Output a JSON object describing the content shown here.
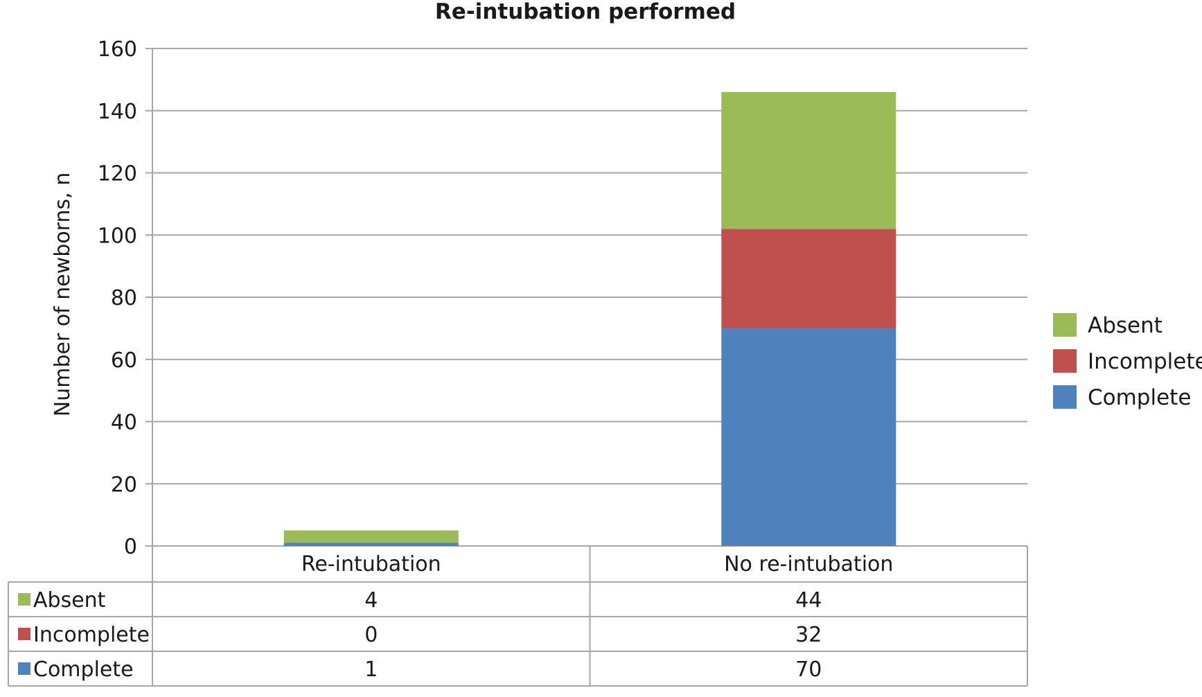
{
  "chart_data": {
    "type": "bar",
    "stacked": true,
    "title": "Re-intubation performed",
    "ylabel": "Number of newborns, n",
    "xlabel": "",
    "ylim": [
      0,
      160
    ],
    "yticks": [
      0,
      20,
      40,
      60,
      80,
      100,
      120,
      140,
      160
    ],
    "grid": true,
    "legend_position": "right",
    "categories": [
      "Re-intubation",
      "No re-intubation"
    ],
    "series": [
      {
        "name": "Complete",
        "values": [
          1,
          70
        ],
        "color": "#4F81BD"
      },
      {
        "name": "Incomplete",
        "values": [
          0,
          32
        ],
        "color": "#C0504D"
      },
      {
        "name": "Absent",
        "values": [
          4,
          44
        ],
        "color": "#9BBB59"
      }
    ],
    "data_table": {
      "row_order": [
        "Absent",
        "Incomplete",
        "Complete"
      ]
    }
  }
}
